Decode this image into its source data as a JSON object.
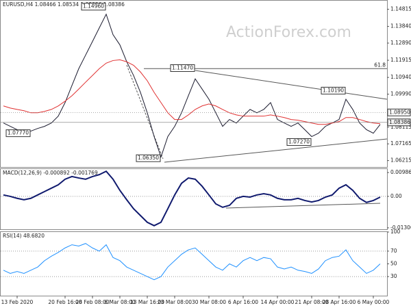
{
  "chart_data": [
    {
      "type": "line",
      "title": "EURUSD,H4  1.08466 1.08534 1.08326 1.08386",
      "watermark": "ActionForex.com",
      "ylim": [
        1.0585,
        1.153
      ],
      "yticks": [
        {
          "value": 1.14815,
          "label": "1.14815"
        },
        {
          "value": 1.1384,
          "label": "1.13840"
        },
        {
          "value": 1.1289,
          "label": "1.12890"
        },
        {
          "value": 1.11915,
          "label": "1.11915"
        },
        {
          "value": 1.1094,
          "label": "1.10940"
        },
        {
          "value": 1.0999,
          "label": "1.09990"
        },
        {
          "value": 1.08115,
          "label": "1.08115"
        },
        {
          "value": 1.07165,
          "label": "1.07165"
        },
        {
          "value": 1.06215,
          "label": "1.06215"
        }
      ],
      "series": [
        {
          "name": "Close",
          "color": "#1a1a2e",
          "values": [
            1.0835,
            1.0816,
            1.0797,
            1.0777,
            1.0789,
            1.0804,
            1.0816,
            1.0835,
            1.0874,
            1.0951,
            1.1048,
            1.1144,
            1.1221,
            1.1298,
            1.1376,
            1.1453,
            1.1337,
            1.1279,
            1.1183,
            1.1105,
            1.1009,
            1.0893,
            1.0758,
            1.0642,
            1.0758,
            1.0816,
            1.0893,
            1.099,
            1.1086,
            1.1028,
            1.097,
            1.0893,
            1.0816,
            1.0855,
            1.0835,
            1.0874,
            1.0912,
            1.0893,
            1.0912,
            1.0951,
            1.0855,
            1.0835,
            1.0816,
            1.0835,
            1.0797,
            1.0758,
            1.0777,
            1.0816,
            1.0835,
            1.0855,
            1.097,
            1.0912,
            1.0835,
            1.0797,
            1.0777,
            1.0827
          ]
        },
        {
          "name": "MA",
          "color": "#e03030",
          "values": [
            1.0932,
            1.092,
            1.0912,
            1.0905,
            1.0893,
            1.0893,
            1.0901,
            1.0912,
            1.0932,
            1.0959,
            1.099,
            1.1028,
            1.1067,
            1.1105,
            1.1144,
            1.1175,
            1.119,
            1.1194,
            1.1183,
            1.1163,
            1.1125,
            1.1075,
            1.1009,
            1.0951,
            1.0893,
            1.0855,
            1.0855,
            1.0881,
            1.0912,
            1.0932,
            1.0943,
            1.0932,
            1.0912,
            1.0893,
            1.0881,
            1.0874,
            1.0874,
            1.0874,
            1.0874,
            1.0881,
            1.0874,
            1.0866,
            1.0855,
            1.0851,
            1.0843,
            1.0835,
            1.0827,
            1.0827,
            1.0835,
            1.0843,
            1.0866,
            1.0866,
            1.0855,
            1.0843,
            1.0835,
            1.0831
          ]
        }
      ],
      "annotations": [
        {
          "text": "1.14960",
          "value": 1.1496,
          "index": 15
        },
        {
          "text": "1.07770",
          "value": 1.0777,
          "index": 4
        },
        {
          "text": "1.06350",
          "value": 1.0635,
          "index": 23
        },
        {
          "text": "1.11470",
          "value": 1.1147,
          "index": 28
        },
        {
          "text": "1.10190",
          "value": 1.1019,
          "index": 50
        },
        {
          "text": "1.07270",
          "value": 1.0727,
          "index": 45
        }
      ],
      "fib_label": "61.8",
      "fib_value": 1.1144,
      "price_marks": [
        {
          "text": "1.08950",
          "value": 1.0895
        },
        {
          "text": "1.08386",
          "value": 1.08386
        }
      ]
    },
    {
      "type": "line",
      "title": "MACD(12,26,9) -0.000892 -0.001769",
      "ylim": [
        -0.0136,
        0.0113
      ],
      "yticks": [
        0.009862,
        {
          "value": 0,
          "label": "0.00"
        },
        -0.013002
      ],
      "series": [
        {
          "name": "MACD",
          "color": "#101a6e",
          "values": [
            0.0006,
            0,
            -0.0008,
            -0.0014,
            -0.0008,
            0.0006,
            0.002,
            0.0034,
            0.0048,
            0.0071,
            0.0082,
            0.0076,
            0.0071,
            0.0082,
            0.009,
            0.0104,
            0.0071,
            0.0025,
            -0.0014,
            -0.0051,
            -0.0079,
            -0.0107,
            -0.0121,
            -0.0107,
            -0.0051,
            0.0006,
            0.0054,
            0.0076,
            0.0071,
            0.0042,
            0.0006,
            -0.0031,
            -0.0045,
            -0.0037,
            -0.0008,
            0,
            -0.0003,
            0.0006,
            0.0011,
            0.0006,
            -0.0008,
            -0.0014,
            -0.0014,
            -0.0008,
            -0.0017,
            -0.0023,
            -0.0017,
            -0.0003,
            0.0006,
            0.0034,
            0.0048,
            0.0025,
            -0.0008,
            -0.0025,
            -0.0017,
            -0.0003
          ]
        }
      ]
    },
    {
      "type": "line",
      "title": "RSI(14) 48.6820",
      "ylim": [
        0,
        100
      ],
      "yticks": [
        100,
        70,
        50,
        30
      ],
      "categories": [
        null,
        null,
        "13 Feb 2020",
        null,
        null,
        null,
        null,
        null,
        null,
        "20 Feb 16:00",
        null,
        null,
        null,
        "28 Feb 08:00",
        null,
        null,
        null,
        "6 Mar 08:00",
        null,
        null,
        null,
        "13 Mar 16:00",
        null,
        null,
        null,
        "23 Mar 08:00",
        null,
        null,
        null,
        null,
        "30 Mar 08:00",
        null,
        null,
        null,
        null,
        "6 Apr 16:00",
        null,
        null,
        null,
        null,
        "14 Apr 00:00",
        null,
        null,
        null,
        null,
        "21 Apr 08:00",
        null,
        null,
        null,
        "28 Apr 16:00",
        null,
        null,
        null,
        null,
        "6 May 00:00",
        null
      ],
      "series": [
        {
          "name": "RSI",
          "color": "#1e90ff",
          "values": [
            40,
            35,
            38,
            35,
            40,
            45,
            55,
            62,
            68,
            75,
            80,
            78,
            82,
            75,
            70,
            80,
            60,
            55,
            45,
            40,
            35,
            30,
            25,
            30,
            45,
            55,
            65,
            72,
            75,
            65,
            55,
            45,
            40,
            50,
            45,
            55,
            60,
            55,
            60,
            58,
            45,
            42,
            45,
            40,
            38,
            35,
            42,
            55,
            60,
            62,
            72,
            55,
            45,
            35,
            40,
            50
          ]
        }
      ]
    }
  ]
}
